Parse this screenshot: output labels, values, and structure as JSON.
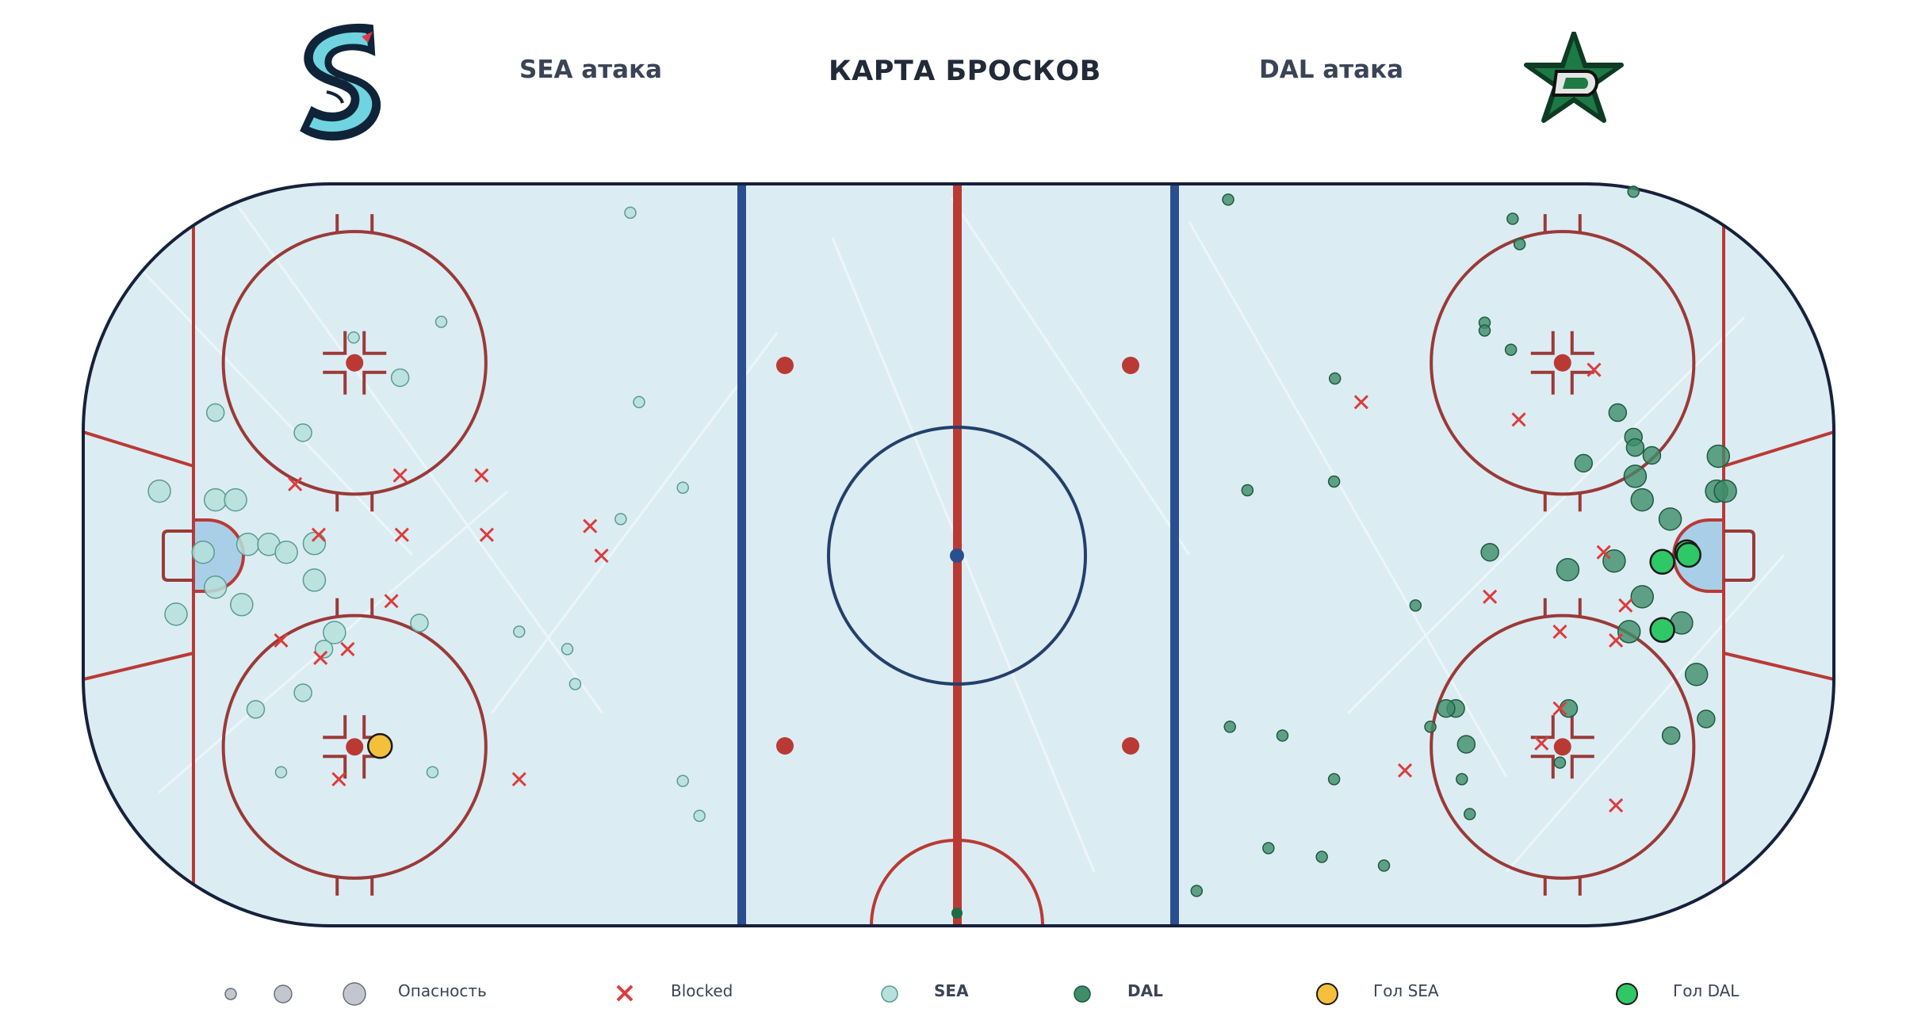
{
  "header": {
    "title": "КАРТА БРОСКОВ",
    "sea_label": "SEA атака",
    "dal_label": "DAL атака"
  },
  "legend": {
    "danger_label": "Опасность",
    "blocked_label": "Blocked",
    "sea_label": "SEA",
    "dal_label": "DAL",
    "goal_sea_label": "Гол SEA",
    "goal_dal_label": "Гол DAL"
  },
  "colors": {
    "rink_ice": "#dcecf3",
    "board": "#16213b",
    "red_line": "#b93a35",
    "blue_line": "#2b4f8e",
    "crease": "#a9cfe8",
    "sea_shot": "#b6e0dc",
    "dal_shot": "#3f8d69",
    "goal_sea": "#f4c03b",
    "goal_dal": "#2ec866",
    "blocked": "#dd3c3c",
    "danger_legend": "#c3c6cf"
  },
  "chart_data": {
    "type": "scatter",
    "title": "КАРТА БРОСКОВ",
    "coordinate_system": "NHL rink feet, center ice (0,0), x: -100..100, y: -42.5..42.5",
    "xlim": [
      -100,
      100
    ],
    "ylim": [
      -42.5,
      42.5
    ],
    "series": [
      {
        "name": "SEA",
        "marker": "circle",
        "color": "#b6e0dc",
        "points": [
          {
            "x": -37.5,
            "y": 39.2,
            "s": 1
          },
          {
            "x": -59.1,
            "y": 26.7,
            "s": 1
          },
          {
            "x": -69.1,
            "y": 24.9,
            "s": 1
          },
          {
            "x": -63.8,
            "y": 20.3,
            "s": 2
          },
          {
            "x": -84.9,
            "y": 16.3,
            "s": 2
          },
          {
            "x": -74.9,
            "y": 14.0,
            "s": 2
          },
          {
            "x": -36.5,
            "y": 17.5,
            "s": 1
          },
          {
            "x": -91.3,
            "y": 7.3,
            "s": 3
          },
          {
            "x": -84.9,
            "y": 6.3,
            "s": 3
          },
          {
            "x": -82.6,
            "y": 6.3,
            "s": 3
          },
          {
            "x": -31.5,
            "y": 7.7,
            "s": 1
          },
          {
            "x": -38.6,
            "y": 4.1,
            "s": 1
          },
          {
            "x": -81.2,
            "y": 1.2,
            "s": 3
          },
          {
            "x": -78.8,
            "y": 1.2,
            "s": 3
          },
          {
            "x": -73.6,
            "y": 1.3,
            "s": 3
          },
          {
            "x": -86.3,
            "y": 0.3,
            "s": 3
          },
          {
            "x": -76.8,
            "y": 0.3,
            "s": 3
          },
          {
            "x": -73.6,
            "y": -2.9,
            "s": 3
          },
          {
            "x": -84.9,
            "y": -3.7,
            "s": 3
          },
          {
            "x": -81.9,
            "y": -5.7,
            "s": 3
          },
          {
            "x": -89.4,
            "y": -6.8,
            "s": 3
          },
          {
            "x": -61.6,
            "y": -7.8,
            "s": 2
          },
          {
            "x": -71.3,
            "y": -8.9,
            "s": 3
          },
          {
            "x": -50.2,
            "y": -8.8,
            "s": 1
          },
          {
            "x": -72.5,
            "y": -10.8,
            "s": 2
          },
          {
            "x": -44.7,
            "y": -10.8,
            "s": 1
          },
          {
            "x": -43.8,
            "y": -14.8,
            "s": 1
          },
          {
            "x": -74.9,
            "y": -15.8,
            "s": 2
          },
          {
            "x": -80.3,
            "y": -17.7,
            "s": 2
          },
          {
            "x": -77.4,
            "y": -24.9,
            "s": 1
          },
          {
            "x": -60.1,
            "y": -24.9,
            "s": 1
          },
          {
            "x": -31.5,
            "y": -25.9,
            "s": 1
          },
          {
            "x": -29.6,
            "y": -29.9,
            "s": 1
          }
        ]
      },
      {
        "name": "DAL",
        "marker": "circle",
        "color": "#3f8d69",
        "points": [
          {
            "x": 30.8,
            "y": 40.7,
            "s": 1
          },
          {
            "x": 77.1,
            "y": 41.6,
            "s": 1
          },
          {
            "x": 63.3,
            "y": 38.5,
            "s": 1
          },
          {
            "x": 64.1,
            "y": 35.6,
            "s": 1
          },
          {
            "x": 60.1,
            "y": 26.6,
            "s": 1
          },
          {
            "x": 60.1,
            "y": 25.7,
            "s": 1
          },
          {
            "x": 63.1,
            "y": 23.5,
            "s": 1
          },
          {
            "x": 43.0,
            "y": 20.2,
            "s": 1
          },
          {
            "x": 75.3,
            "y": 16.3,
            "s": 2
          },
          {
            "x": 77.1,
            "y": 13.5,
            "s": 2
          },
          {
            "x": 77.3,
            "y": 12.3,
            "s": 2
          },
          {
            "x": 79.2,
            "y": 11.4,
            "s": 2
          },
          {
            "x": 71.4,
            "y": 10.5,
            "s": 2
          },
          {
            "x": 86.8,
            "y": 11.3,
            "s": 3
          },
          {
            "x": 77.3,
            "y": 9.0,
            "s": 3
          },
          {
            "x": 42.9,
            "y": 8.4,
            "s": 1
          },
          {
            "x": 33.0,
            "y": 7.4,
            "s": 1
          },
          {
            "x": 86.6,
            "y": 7.3,
            "s": 3
          },
          {
            "x": 87.6,
            "y": 7.3,
            "s": 3
          },
          {
            "x": 78.1,
            "y": 6.3,
            "s": 3
          },
          {
            "x": 81.3,
            "y": 4.1,
            "s": 3
          },
          {
            "x": 60.7,
            "y": 0.3,
            "s": 2
          },
          {
            "x": 74.9,
            "y": -0.7,
            "s": 3
          },
          {
            "x": 69.6,
            "y": -1.7,
            "s": 3
          },
          {
            "x": 52.2,
            "y": -5.8,
            "s": 1
          },
          {
            "x": 78.1,
            "y": -4.8,
            "s": 3
          },
          {
            "x": 82.6,
            "y": -7.8,
            "s": 3
          },
          {
            "x": 76.6,
            "y": -8.8,
            "s": 3
          },
          {
            "x": 84.3,
            "y": -13.7,
            "s": 3
          },
          {
            "x": 69.7,
            "y": -17.6,
            "s": 2
          },
          {
            "x": 56.8,
            "y": -17.6,
            "s": 2
          },
          {
            "x": 55.7,
            "y": -17.6,
            "s": 2
          },
          {
            "x": 53.9,
            "y": -19.7,
            "s": 1
          },
          {
            "x": 31.0,
            "y": -19.7,
            "s": 1
          },
          {
            "x": 37.0,
            "y": -20.7,
            "s": 1
          },
          {
            "x": 58.0,
            "y": -21.7,
            "s": 2
          },
          {
            "x": 81.4,
            "y": -20.7,
            "s": 2
          },
          {
            "x": 85.4,
            "y": -18.8,
            "s": 2
          },
          {
            "x": 68.7,
            "y": -23.8,
            "s": 1
          },
          {
            "x": 42.9,
            "y": -25.7,
            "s": 1
          },
          {
            "x": 57.5,
            "y": -25.7,
            "s": 1
          },
          {
            "x": 58.4,
            "y": -29.7,
            "s": 1
          },
          {
            "x": 35.4,
            "y": -33.6,
            "s": 1
          },
          {
            "x": 41.5,
            "y": -34.6,
            "s": 1
          },
          {
            "x": 48.6,
            "y": -35.6,
            "s": 1
          },
          {
            "x": 27.2,
            "y": -38.5,
            "s": 1
          }
        ]
      },
      {
        "name": "Гол SEA",
        "marker": "circle",
        "color": "#f4c03b",
        "points": [
          {
            "x": -66.1,
            "y": -21.9,
            "s": 2
          }
        ]
      },
      {
        "name": "Гол DAL",
        "marker": "circle",
        "color": "#2ec866",
        "points": [
          {
            "x": 83.2,
            "y": 0.3,
            "s": 3
          },
          {
            "x": 83.4,
            "y": 0.0,
            "s": 3
          },
          {
            "x": 80.4,
            "y": -0.8,
            "s": 3
          },
          {
            "x": 80.4,
            "y": -8.6,
            "s": 3
          }
        ]
      },
      {
        "name": "Blocked",
        "marker": "x",
        "color": "#dd3c3c",
        "points": [
          {
            "x": -64.8,
            "y": -5.3
          },
          {
            "x": -75.8,
            "y": 8.1
          },
          {
            "x": -63.8,
            "y": 9.1
          },
          {
            "x": -54.5,
            "y": 9.1
          },
          {
            "x": -73.1,
            "y": 2.3
          },
          {
            "x": -63.6,
            "y": 2.3
          },
          {
            "x": -53.9,
            "y": 2.3
          },
          {
            "x": -42.1,
            "y": 3.3
          },
          {
            "x": -40.8,
            "y": -0.1
          },
          {
            "x": -77.4,
            "y": -9.8
          },
          {
            "x": -72.9,
            "y": -11.8
          },
          {
            "x": -69.8,
            "y": -10.8
          },
          {
            "x": -70.8,
            "y": -25.7
          },
          {
            "x": -50.2,
            "y": -25.7
          },
          {
            "x": 72.6,
            "y": 21.2
          },
          {
            "x": 46.0,
            "y": 17.5
          },
          {
            "x": 64.0,
            "y": 15.5
          },
          {
            "x": 73.7,
            "y": 0.3
          },
          {
            "x": 60.7,
            "y": -4.8
          },
          {
            "x": 76.2,
            "y": -5.8
          },
          {
            "x": 68.7,
            "y": -8.8
          },
          {
            "x": 75.1,
            "y": -9.8
          },
          {
            "x": 68.7,
            "y": -17.6
          },
          {
            "x": 66.6,
            "y": -21.6
          },
          {
            "x": 51.0,
            "y": -24.7
          },
          {
            "x": 75.1,
            "y": -28.7
          }
        ]
      }
    ]
  }
}
